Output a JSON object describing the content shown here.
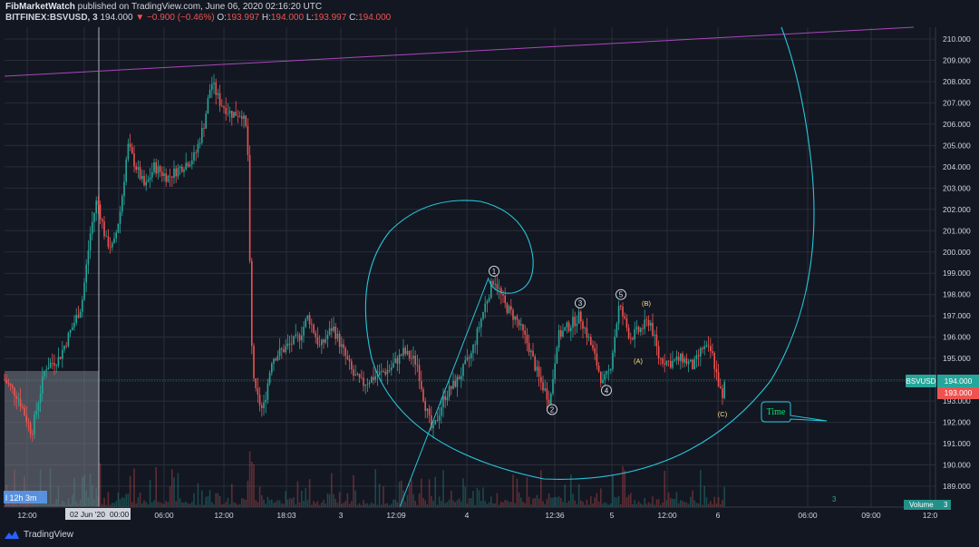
{
  "header": {
    "publisher": "FibMarketWatch",
    "published_text": "published on TradingView.com, June 06, 2020 02:16:20 UTC",
    "symbol": "BITFINEX:BSVUSD, 3",
    "last": "194.000",
    "change": "−0.900 (−0.46%)",
    "o_label": "O:",
    "o_value": "193.997",
    "h_label": "H:",
    "h_value": "194.000",
    "l_label": "L:",
    "l_value": "193.997",
    "c_label": "C:",
    "c_value": "194.000"
  },
  "footer": {
    "brand": "TradingView"
  },
  "colors": {
    "background": "#131722",
    "grid": "#2a2e39",
    "up": "#26a69a",
    "down": "#ef5350",
    "fib": "#26c6da",
    "trendline": "#9c27b0"
  },
  "chart_data": {
    "type": "candlestick",
    "symbol": "BSVUSD",
    "interval": "3",
    "y_axis": {
      "min": 188.5,
      "max": 210.5,
      "ticks": [
        210.0,
        209.0,
        208.0,
        207.0,
        206.0,
        205.0,
        204.0,
        203.0,
        202.0,
        201.0,
        200.0,
        199.0,
        198.0,
        197.0,
        196.0,
        195.0,
        194.0,
        193.0,
        192.0,
        191.0,
        190.0,
        189.0
      ]
    },
    "x_axis": {
      "ticks": [
        "12:00",
        "02 Jun '20",
        "00:00",
        "06:00",
        "12:00",
        "18:03",
        "3",
        "12:09",
        "4",
        "12:36",
        "5",
        "12:00",
        "6",
        "06:00",
        "09:00",
        "12:0"
      ]
    },
    "last_price": 194.0,
    "price_label": "BSVUSD",
    "price_value": "194.000",
    "price_value2": "193.000",
    "price_path": [
      {
        "t": 0,
        "p": 194.0
      },
      {
        "t": 15,
        "p": 193.2
      },
      {
        "t": 30,
        "p": 191.5
      },
      {
        "t": 45,
        "p": 194.6
      },
      {
        "t": 60,
        "p": 195.0
      },
      {
        "t": 75,
        "p": 196.5
      },
      {
        "t": 85,
        "p": 197.5
      },
      {
        "t": 95,
        "p": 201.0
      },
      {
        "t": 102,
        "p": 202.5
      },
      {
        "t": 112,
        "p": 200.5
      },
      {
        "t": 120,
        "p": 200.2
      },
      {
        "t": 128,
        "p": 202.0
      },
      {
        "t": 136,
        "p": 205.0
      },
      {
        "t": 145,
        "p": 204.0
      },
      {
        "t": 155,
        "p": 203.0
      },
      {
        "t": 165,
        "p": 204.0
      },
      {
        "t": 180,
        "p": 203.5
      },
      {
        "t": 195,
        "p": 204.0
      },
      {
        "t": 210,
        "p": 204.5
      },
      {
        "t": 220,
        "p": 206.0
      },
      {
        "t": 228,
        "p": 208.0
      },
      {
        "t": 238,
        "p": 207.0
      },
      {
        "t": 250,
        "p": 206.5
      },
      {
        "t": 262,
        "p": 206.5
      },
      {
        "t": 268,
        "p": 205.5
      },
      {
        "t": 272,
        "p": 196.0
      },
      {
        "t": 276,
        "p": 193.5
      },
      {
        "t": 285,
        "p": 192.5
      },
      {
        "t": 295,
        "p": 195.0
      },
      {
        "t": 310,
        "p": 195.5
      },
      {
        "t": 325,
        "p": 196.0
      },
      {
        "t": 335,
        "p": 197.0
      },
      {
        "t": 348,
        "p": 195.5
      },
      {
        "t": 362,
        "p": 196.5
      },
      {
        "t": 375,
        "p": 195.2
      },
      {
        "t": 385,
        "p": 194.2
      },
      {
        "t": 395,
        "p": 193.8
      },
      {
        "t": 410,
        "p": 194.2
      },
      {
        "t": 425,
        "p": 194.5
      },
      {
        "t": 440,
        "p": 195.3
      },
      {
        "t": 455,
        "p": 194.8
      },
      {
        "t": 463,
        "p": 193.0
      },
      {
        "t": 472,
        "p": 191.5
      },
      {
        "t": 485,
        "p": 193.2
      },
      {
        "t": 500,
        "p": 194.0
      },
      {
        "t": 515,
        "p": 195.2
      },
      {
        "t": 530,
        "p": 197.5
      },
      {
        "t": 540,
        "p": 198.8
      },
      {
        "t": 552,
        "p": 197.5
      },
      {
        "t": 565,
        "p": 196.8
      },
      {
        "t": 578,
        "p": 195.6
      },
      {
        "t": 590,
        "p": 194.0
      },
      {
        "t": 602,
        "p": 193.0
      },
      {
        "t": 610,
        "p": 196.0
      },
      {
        "t": 622,
        "p": 196.5
      },
      {
        "t": 635,
        "p": 197.0
      },
      {
        "t": 648,
        "p": 195.5
      },
      {
        "t": 660,
        "p": 193.8
      },
      {
        "t": 668,
        "p": 194.5
      },
      {
        "t": 678,
        "p": 197.5
      },
      {
        "t": 690,
        "p": 196.0
      },
      {
        "t": 700,
        "p": 196.3
      },
      {
        "t": 712,
        "p": 196.8
      },
      {
        "t": 722,
        "p": 195.0
      },
      {
        "t": 735,
        "p": 194.8
      },
      {
        "t": 748,
        "p": 195.0
      },
      {
        "t": 760,
        "p": 194.6
      },
      {
        "t": 770,
        "p": 195.5
      },
      {
        "t": 780,
        "p": 195.3
      },
      {
        "t": 792,
        "p": 193.0
      },
      {
        "t": 795,
        "p": 194.0
      }
    ],
    "wave_labels": [
      {
        "label": "1",
        "t": 540,
        "p": 199.1,
        "circled": true
      },
      {
        "label": "2",
        "t": 604,
        "p": 192.6,
        "circled": true
      },
      {
        "label": "3",
        "t": 635,
        "p": 197.6,
        "circled": true
      },
      {
        "label": "4",
        "t": 664,
        "p": 193.5,
        "circled": true
      },
      {
        "label": "5",
        "t": 680,
        "p": 198.0,
        "circled": true
      },
      {
        "label": "(A)",
        "t": 699,
        "p": 194.9,
        "circled": false
      },
      {
        "label": "(B)",
        "t": 708,
        "p": 197.6,
        "circled": false
      },
      {
        "label": "(C)",
        "t": 792,
        "p": 192.4,
        "circled": false
      }
    ],
    "annotations": {
      "countdown": "l 12h 3m",
      "time_callout": "Time",
      "volume_label": "Volume",
      "volume_value": "3"
    }
  }
}
